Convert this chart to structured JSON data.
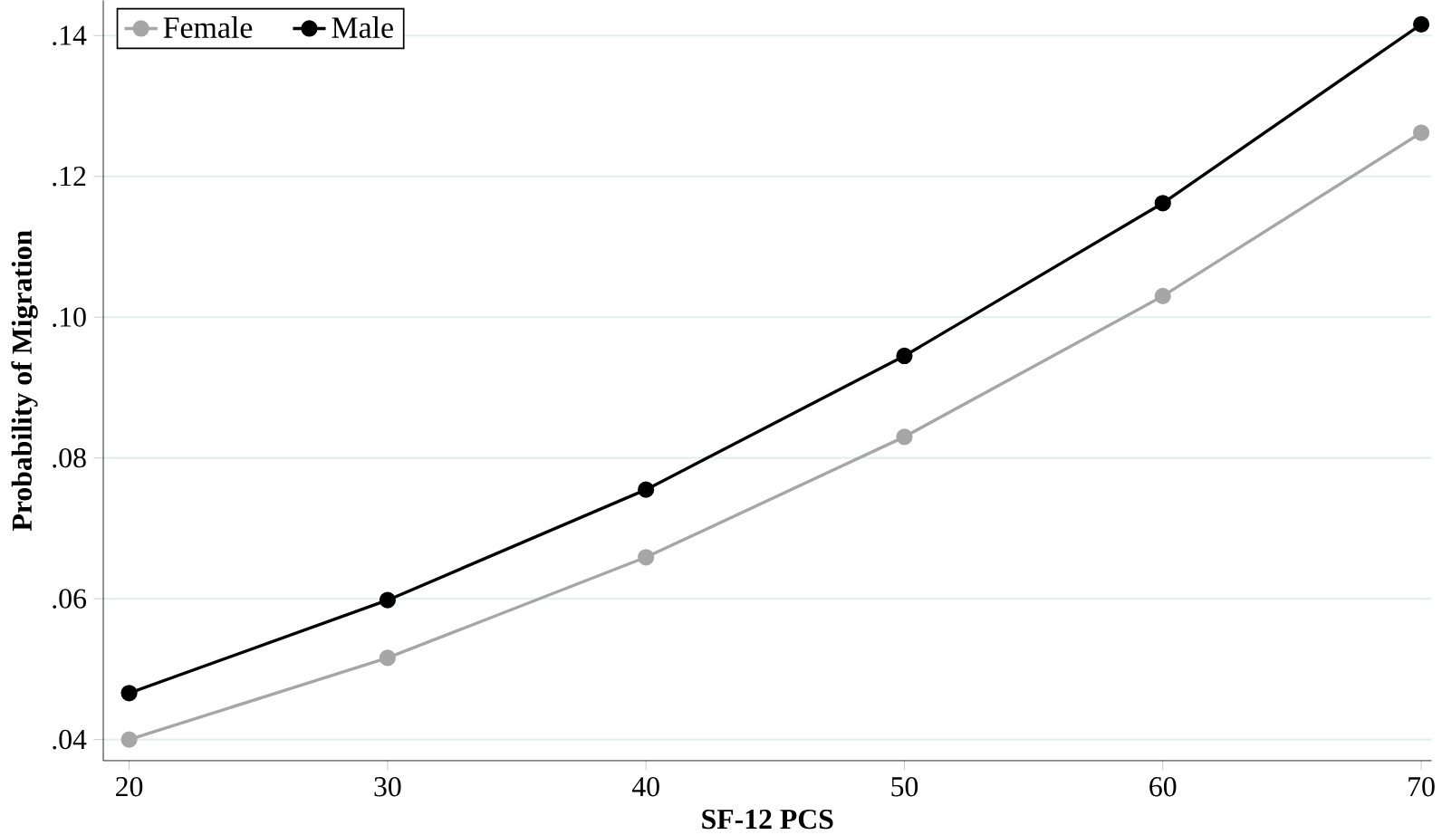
{
  "chart_data": {
    "type": "line",
    "xlabel": "SF-12 PCS",
    "ylabel": "Probability of Migration",
    "x": [
      20,
      30,
      40,
      50,
      60,
      70
    ],
    "series": [
      {
        "name": "Female",
        "color": "#a6a6a6",
        "values": [
          0.04,
          0.0516,
          0.0659,
          0.083,
          0.103,
          0.1262
        ]
      },
      {
        "name": "Male",
        "color": "#000000",
        "values": [
          0.0466,
          0.0598,
          0.0755,
          0.0945,
          0.1162,
          0.1416
        ]
      }
    ],
    "xlim": [
      19,
      70.4
    ],
    "ylim": [
      0.037,
      0.145
    ],
    "xticks": [
      20,
      30,
      40,
      50,
      60,
      70
    ],
    "yticks": [
      {
        "value": 0.04,
        "label": ".04"
      },
      {
        "value": 0.06,
        "label": ".06"
      },
      {
        "value": 0.08,
        "label": ".08"
      },
      {
        "value": 0.1,
        "label": ".10"
      },
      {
        "value": 0.12,
        "label": ".12"
      },
      {
        "value": 0.14,
        "label": ".14"
      }
    ],
    "grid": "y",
    "legend": "top left",
    "marker": "circle",
    "line_style": "solid"
  }
}
